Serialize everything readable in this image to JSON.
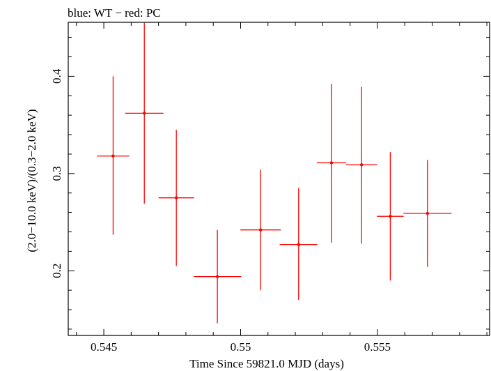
{
  "chart_data": {
    "type": "scatter",
    "title": "blue: WT − red: PC",
    "xlabel": "Time Since 59821.0 MJD (days)",
    "ylabel": "(2.0−10.0 keV)/(0.3−2.0 keV)",
    "xlim": [
      0.5437,
      0.5591
    ],
    "ylim": [
      0.1335,
      0.4555
    ],
    "xticks_major": [
      0.545,
      0.55,
      0.555
    ],
    "xtick_labels": [
      "0.545",
      "0.55",
      "0.555"
    ],
    "yticks_major": [
      0.2,
      0.3,
      0.4
    ],
    "ytick_labels": [
      "0.2",
      "0.3",
      "0.4"
    ],
    "grid": false,
    "series": [
      {
        "color": "#ff0000",
        "points": [
          {
            "x": 0.54534,
            "xerr": 0.00059,
            "y": 0.318,
            "yerr_lo": 0.081,
            "yerr_hi": 0.082
          },
          {
            "x": 0.54648,
            "xerr": 0.0007,
            "y": 0.362,
            "yerr_lo": 0.093,
            "yerr_hi": 0.093
          },
          {
            "x": 0.54765,
            "xerr": 0.00065,
            "y": 0.275,
            "yerr_lo": 0.07,
            "yerr_hi": 0.07
          },
          {
            "x": 0.54915,
            "xerr": 0.00087,
            "y": 0.194,
            "yerr_lo": 0.048,
            "yerr_hi": 0.048
          },
          {
            "x": 0.55073,
            "xerr": 0.00074,
            "y": 0.242,
            "yerr_lo": 0.062,
            "yerr_hi": 0.062
          },
          {
            "x": 0.55212,
            "xerr": 0.00069,
            "y": 0.227,
            "yerr_lo": 0.057,
            "yerr_hi": 0.058
          },
          {
            "x": 0.55332,
            "xerr": 0.00054,
            "y": 0.311,
            "yerr_lo": 0.082,
            "yerr_hi": 0.081
          },
          {
            "x": 0.55442,
            "xerr": 0.00057,
            "y": 0.309,
            "yerr_lo": 0.081,
            "yerr_hi": 0.08
          },
          {
            "x": 0.55547,
            "xerr": 0.00049,
            "y": 0.256,
            "yerr_lo": 0.066,
            "yerr_hi": 0.066
          },
          {
            "x": 0.55683,
            "xerr": 0.00088,
            "y": 0.259,
            "yerr_lo": 0.055,
            "yerr_hi": 0.055
          }
        ]
      }
    ]
  }
}
